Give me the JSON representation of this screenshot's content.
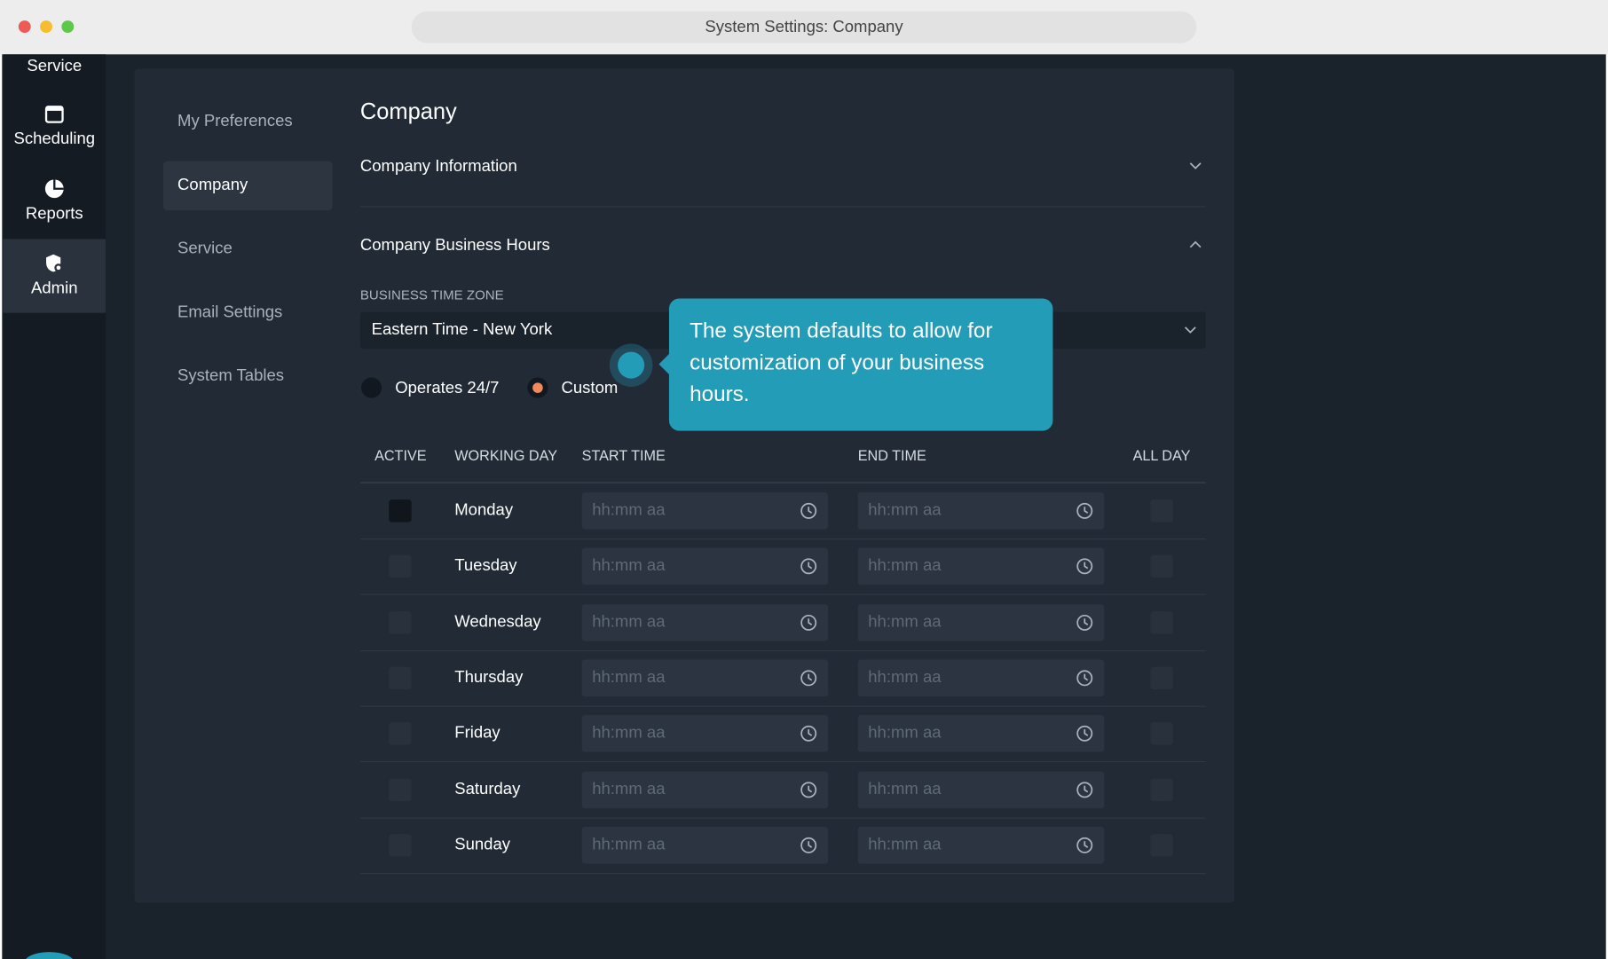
{
  "window": {
    "title": "System Settings: Company"
  },
  "sidebar": {
    "items": [
      "Service",
      "Scheduling",
      "Reports",
      "Admin"
    ]
  },
  "settings_nav": {
    "items": [
      "My Preferences",
      "Company",
      "Service",
      "Email Settings",
      "System Tables"
    ]
  },
  "page": {
    "title": "Company",
    "company_information": "Company Information",
    "business_hours": "Company Business Hours",
    "timezone_label": "BUSINESS TIME ZONE",
    "timezone_value": "Eastern Time - New York",
    "options": [
      "Operates 24/7",
      "Custom"
    ]
  },
  "table": {
    "headers": [
      "ACTIVE",
      "WORKING DAY",
      "START TIME",
      "END TIME",
      "ALL DAY"
    ],
    "days": [
      "Monday",
      "Tuesday",
      "Wednesday",
      "Thursday",
      "Friday",
      "Saturday",
      "Sunday"
    ],
    "time_placeholder": "hh:mm aa"
  },
  "tooltip": {
    "text": "The system defaults to allow for customization of your business hours."
  }
}
